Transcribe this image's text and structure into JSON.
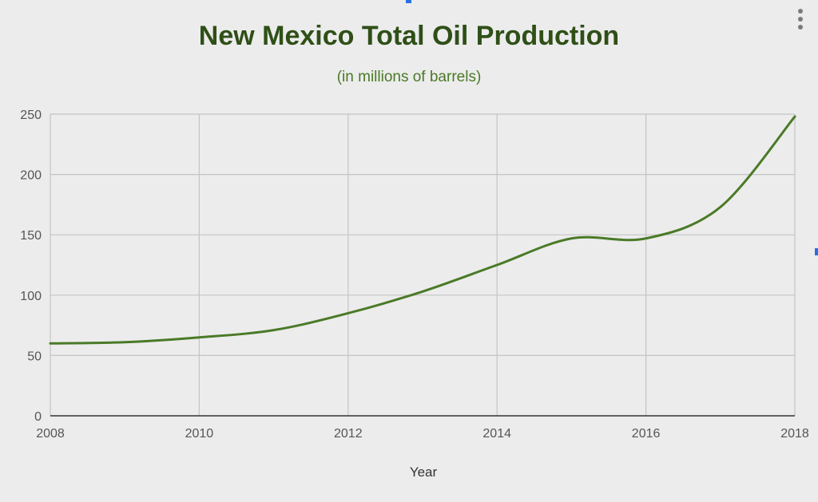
{
  "colors": {
    "background": "#ececec",
    "title": "#2f4f17",
    "subtitle": "#4a7a27",
    "line": "#4a7a27",
    "grid": "#c4c4c4",
    "axis": "#333333",
    "selection_handle": "#2a6fe0"
  },
  "menu": {
    "icon": "more-vert-icon"
  },
  "chart_data": {
    "type": "line",
    "title": "New Mexico Total Oil Production",
    "subtitle": "(in millions of barrels)",
    "xlabel": "Year",
    "ylabel": "",
    "xlim": [
      2008,
      2018
    ],
    "ylim": [
      0,
      250
    ],
    "x_ticks": [
      2008,
      2010,
      2012,
      2014,
      2016,
      2018
    ],
    "y_ticks": [
      0,
      50,
      100,
      150,
      200,
      250
    ],
    "grid": true,
    "legend": "none",
    "curve": "smooth",
    "series": [
      {
        "x": [
          2008,
          2009,
          2010,
          2011,
          2012,
          2013,
          2014,
          2015,
          2016,
          2017,
          2018
        ],
        "values": [
          60,
          61,
          65,
          71,
          85,
          103,
          125,
          147,
          147,
          173,
          248
        ]
      }
    ]
  }
}
